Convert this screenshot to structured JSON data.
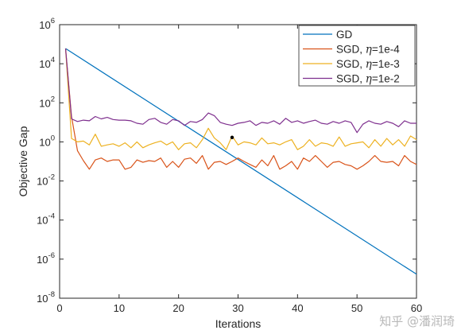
{
  "chart_data": {
    "type": "line",
    "title": "",
    "xlabel": "Iterations",
    "ylabel": "Objective Gap",
    "xlim": [
      0,
      60
    ],
    "ylim": [
      1e-08,
      1000000.0
    ],
    "yscale": "log",
    "grid": false,
    "legend_position": "top-right",
    "x_ticks": [
      0,
      10,
      20,
      30,
      40,
      50,
      60
    ],
    "y_ticks": [
      {
        "value": 1000000.0,
        "base": "10",
        "exp": "6"
      },
      {
        "value": 10000.0,
        "base": "10",
        "exp": "4"
      },
      {
        "value": 100.0,
        "base": "10",
        "exp": "2"
      },
      {
        "value": 1,
        "base": "10",
        "exp": "0"
      },
      {
        "value": 0.01,
        "base": "10",
        "exp": "-2"
      },
      {
        "value": 0.0001,
        "base": "10",
        "exp": "-4"
      },
      {
        "value": 1e-06,
        "base": "10",
        "exp": "-6"
      },
      {
        "value": 1e-08,
        "base": "10",
        "exp": "-8"
      }
    ],
    "series": [
      {
        "name": "GD",
        "legend_main": "GD",
        "legend_eta": "",
        "legend_tail": "",
        "color": "#0072BD",
        "x": [
          1,
          60
        ],
        "y": [
          60000,
          1.7e-07
        ]
      },
      {
        "name": "SGD, η=1e-4",
        "legend_main": "SGD, ",
        "legend_eta": "η",
        "legend_tail": "=1e-4",
        "color": "#D95319",
        "x": [
          1,
          2,
          3,
          4,
          5,
          6,
          7,
          8,
          9,
          10,
          11,
          12,
          13,
          14,
          15,
          16,
          17,
          18,
          19,
          20,
          21,
          22,
          23,
          24,
          25,
          26,
          27,
          28,
          29,
          30,
          31,
          32,
          33,
          34,
          35,
          36,
          37,
          38,
          39,
          40,
          41,
          42,
          43,
          44,
          45,
          46,
          47,
          48,
          49,
          50,
          51,
          52,
          53,
          54,
          55,
          56,
          57,
          58,
          59,
          60
        ],
        "y": [
          60000,
          20,
          0.35,
          0.11,
          0.04,
          0.12,
          0.15,
          0.1,
          0.12,
          0.12,
          0.04,
          0.05,
          0.12,
          0.09,
          0.11,
          0.1,
          0.15,
          0.05,
          0.1,
          0.05,
          0.13,
          0.15,
          0.08,
          0.2,
          0.04,
          0.09,
          0.1,
          0.07,
          0.1,
          0.15,
          0.1,
          0.07,
          0.05,
          0.12,
          0.06,
          0.2,
          0.04,
          0.06,
          0.1,
          0.04,
          0.15,
          0.1,
          0.2,
          0.1,
          0.05,
          0.09,
          0.1,
          0.07,
          0.06,
          0.04,
          0.06,
          0.1,
          0.2,
          0.1,
          0.09,
          0.1,
          0.06,
          0.2,
          0.1,
          0.07
        ]
      },
      {
        "name": "SGD, η=1e-3",
        "legend_main": "SGD, ",
        "legend_eta": "η",
        "legend_tail": "=1e-3",
        "color": "#EDB120",
        "x": [
          1,
          2,
          3,
          4,
          5,
          6,
          7,
          8,
          9,
          10,
          11,
          12,
          13,
          14,
          15,
          16,
          17,
          18,
          19,
          20,
          21,
          22,
          23,
          24,
          25,
          26,
          27,
          28,
          29,
          30,
          31,
          32,
          33,
          34,
          35,
          36,
          37,
          38,
          39,
          40,
          41,
          42,
          43,
          44,
          45,
          46,
          47,
          48,
          49,
          50,
          51,
          52,
          53,
          54,
          55,
          56,
          57,
          58,
          59,
          60
        ],
        "y": [
          60000,
          1.5,
          1.0,
          1.1,
          0.7,
          2.5,
          0.6,
          0.7,
          0.8,
          0.6,
          0.9,
          0.5,
          1.0,
          0.5,
          0.7,
          0.9,
          1.1,
          0.7,
          1.0,
          0.4,
          0.8,
          0.9,
          0.5,
          1.3,
          5,
          1.6,
          0.9,
          0.4,
          2.0,
          0.7,
          1.0,
          0.9,
          0.7,
          1.6,
          0.8,
          0.9,
          0.7,
          1.0,
          1.3,
          0.4,
          0.6,
          1.3,
          0.6,
          0.9,
          0.8,
          0.6,
          1.8,
          0.6,
          0.8,
          0.9,
          1.0,
          0.5,
          1.3,
          0.6,
          1.5,
          0.7,
          1.3,
          0.6,
          2.0,
          1.3
        ]
      },
      {
        "name": "SGD, η=1e-2",
        "legend_main": "SGD, ",
        "legend_eta": "η",
        "legend_tail": "=1e-2",
        "color": "#7E2F8E",
        "x": [
          1,
          2,
          3,
          4,
          5,
          6,
          7,
          8,
          9,
          10,
          11,
          12,
          13,
          14,
          15,
          16,
          17,
          18,
          19,
          20,
          21,
          22,
          23,
          24,
          25,
          26,
          27,
          28,
          29,
          30,
          31,
          32,
          33,
          34,
          35,
          36,
          37,
          38,
          39,
          40,
          41,
          42,
          43,
          44,
          45,
          46,
          47,
          48,
          49,
          50,
          51,
          52,
          53,
          54,
          55,
          56,
          57,
          58,
          59,
          60
        ],
        "y": [
          60000,
          15,
          11,
          13,
          12,
          20,
          15,
          18,
          14,
          13,
          13,
          12,
          9,
          8,
          14,
          16,
          10,
          8,
          14,
          12,
          7,
          11,
          10,
          14,
          30,
          22,
          10,
          8,
          7,
          9,
          10,
          12,
          7,
          10,
          9,
          12,
          8,
          16,
          10,
          12,
          9,
          11,
          13,
          9,
          8,
          11,
          9,
          12,
          10,
          3,
          8,
          12,
          9,
          8,
          11,
          9,
          6,
          12,
          9,
          9
        ]
      }
    ],
    "annotations": [
      {
        "type": "point",
        "x": 29,
        "y": 1.7,
        "color": "#000000"
      }
    ]
  },
  "watermark": "知乎 @潘润琦"
}
